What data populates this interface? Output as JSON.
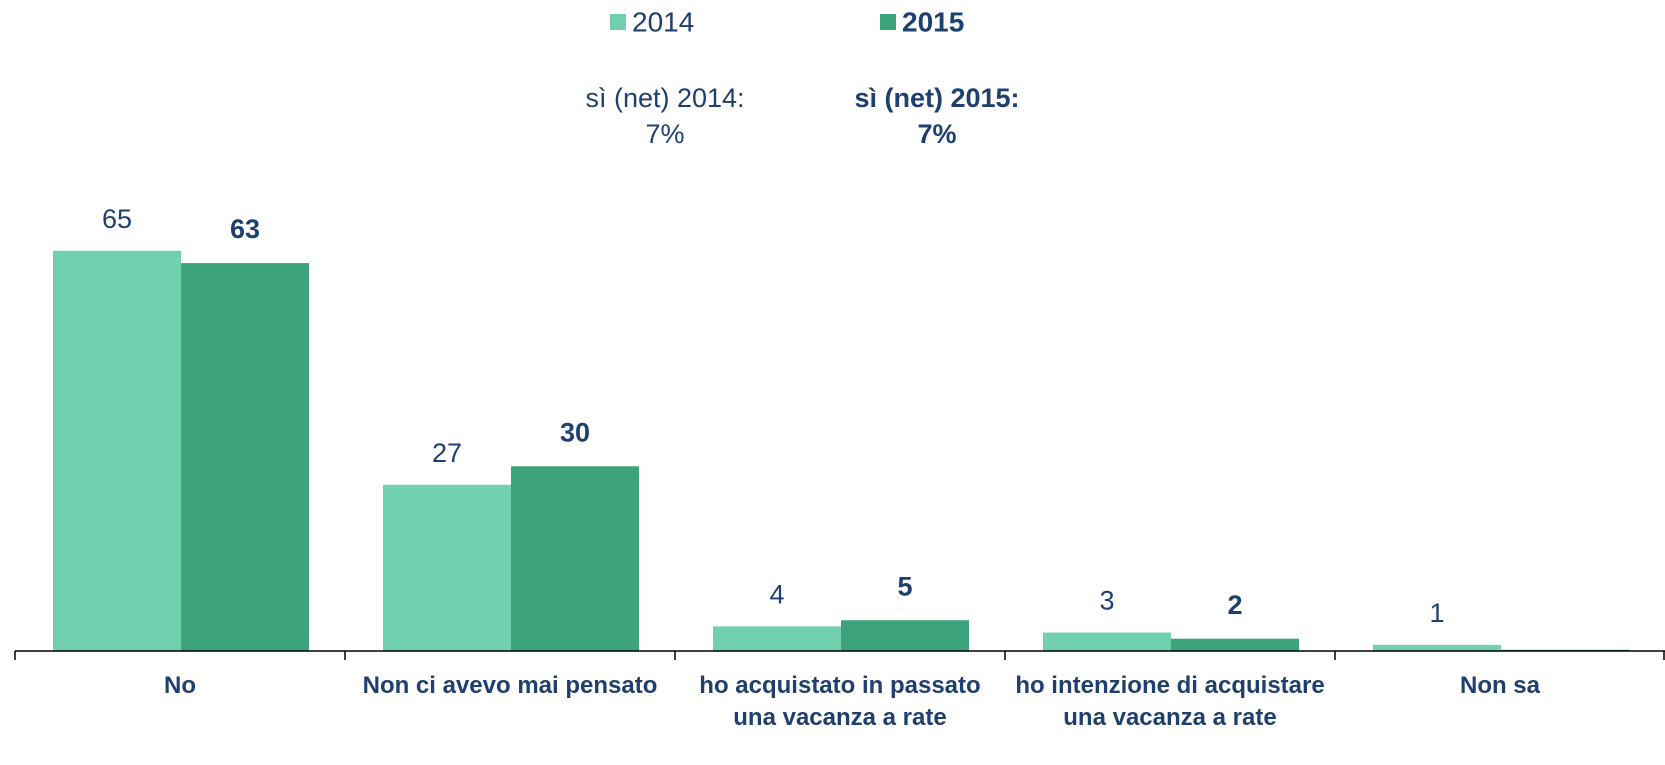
{
  "chart_data": {
    "type": "bar",
    "categories": [
      "No",
      "Non ci avevo mai pensato",
      "ho acquistato in passato una vacanza a rate",
      "ho intenzione di acquistare una vacanza a rate",
      "Non sa"
    ],
    "series": [
      {
        "name": "2014",
        "color": "#71d0ad",
        "bold": false,
        "values": [
          65,
          27,
          4,
          3,
          1
        ]
      },
      {
        "name": "2015",
        "color": "#3da37c",
        "bold": true,
        "values": [
          63,
          30,
          5,
          2,
          0.2
        ],
        "value_labels": [
          "63",
          "30",
          "5",
          "2",
          null
        ]
      }
    ],
    "annotations": [
      {
        "lines": [
          "sì (net) 2014:",
          "7%"
        ],
        "bold": false
      },
      {
        "lines": [
          "sì (net) 2015:",
          "7%"
        ],
        "bold": true
      }
    ],
    "ylim": [
      0,
      70
    ],
    "grid": false,
    "legend": "top"
  }
}
